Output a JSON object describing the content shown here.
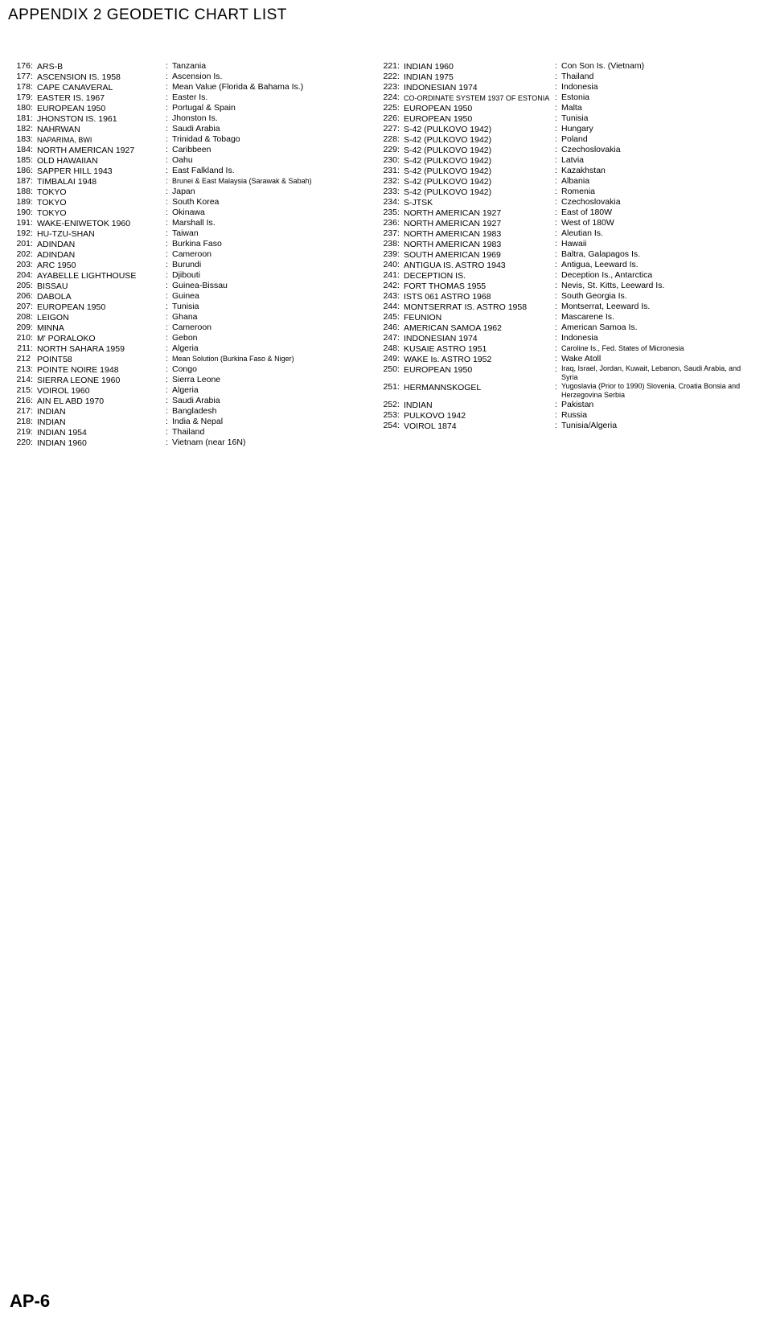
{
  "title": "APPENDIX 2 GEODETIC CHART LIST",
  "footer": "AP-6",
  "left": [
    {
      "num": "176",
      "name": "ARS-B",
      "desc": "Tanzania"
    },
    {
      "num": "177",
      "name": "ASCENSION IS. 1958",
      "desc": "Ascension Is."
    },
    {
      "num": "178",
      "name": "CAPE CANAVERAL",
      "desc": "Mean Value (Florida & Bahama Is.)"
    },
    {
      "num": "179",
      "name": "EASTER IS. 1967",
      "desc": "Easter Is."
    },
    {
      "num": "180",
      "name": "EUROPEAN 1950",
      "desc": "Portugal & Spain"
    },
    {
      "num": "181",
      "name": "JHONSTON IS. 1961",
      "desc": "Jhonston Is."
    },
    {
      "num": "182",
      "name": "NAHRWAN",
      "desc": "Saudi Arabia"
    },
    {
      "num": "183",
      "name": "NAPARIMA, BWI",
      "nameSm": true,
      "desc": "Trinidad & Tobago"
    },
    {
      "num": "184",
      "name": "NORTH AMERICAN 1927",
      "desc": "Caribbeen"
    },
    {
      "num": "185",
      "name": "OLD HAWAIIAN",
      "desc": "Oahu"
    },
    {
      "num": "186",
      "name": "SAPPER HILL 1943",
      "desc": "East Falkland Is."
    },
    {
      "num": "187",
      "name": "TIMBALAI 1948",
      "desc": "Brunei & East Malaysia (Sarawak & Sabah)",
      "descSm": true
    },
    {
      "num": "188",
      "name": "TOKYO",
      "desc": "Japan"
    },
    {
      "num": "189",
      "name": "TOKYO",
      "desc": "South Korea"
    },
    {
      "num": "190",
      "name": "TOKYO",
      "desc": "Okinawa"
    },
    {
      "num": "191",
      "name": "WAKE-ENIWETOK 1960",
      "desc": "Marshall Is."
    },
    {
      "num": "192",
      "name": "HU-TZU-SHAN",
      "desc": "Taiwan"
    },
    {
      "num": "201",
      "name": "ADINDAN",
      "desc": "Burkina Faso"
    },
    {
      "num": "202",
      "name": "ADINDAN",
      "desc": "Cameroon"
    },
    {
      "num": "203",
      "name": "ARC 1950",
      "desc": "Burundi"
    },
    {
      "num": "204",
      "name": "AYABELLE LIGHTHOUSE",
      "desc": "Djibouti"
    },
    {
      "num": "205",
      "name": "BISSAU",
      "desc": "Guinea-Bissau"
    },
    {
      "num": "206",
      "name": "DABOLA",
      "desc": "Guinea"
    },
    {
      "num": "207",
      "name": "EUROPEAN 1950",
      "desc": "Tunisia"
    },
    {
      "num": "208",
      "name": "LEIGON",
      "desc": "Ghana"
    },
    {
      "num": "209",
      "name": "MINNA",
      "desc": "Cameroon"
    },
    {
      "num": "210",
      "name": "M' PORALOKO",
      "desc": "Gebon"
    },
    {
      "num": "211",
      "name": "NORTH SAHARA 1959",
      "desc": "Algeria"
    },
    {
      "num": "212",
      "name": "POINT58",
      "noColon": true,
      "desc": "Mean Solution (Burkina Faso & Niger)",
      "descSm": true
    },
    {
      "num": "213",
      "name": "POINTE NOIRE 1948",
      "desc": "Congo"
    },
    {
      "num": "214",
      "name": "SIERRA LEONE 1960",
      "desc": "Sierra Leone"
    },
    {
      "num": "215",
      "name": "VOIROL 1960",
      "desc": "Algeria"
    },
    {
      "num": "216",
      "name": "AIN EL ABD 1970",
      "desc": "Saudi Arabia"
    },
    {
      "num": "217",
      "name": "INDIAN",
      "desc": "Bangladesh"
    },
    {
      "num": "218",
      "name": "INDIAN",
      "desc": "India & Nepal"
    },
    {
      "num": "219",
      "name": "INDIAN 1954",
      "desc": "Thailand"
    },
    {
      "num": "220",
      "name": "INDIAN 1960",
      "desc": "Vietnam (near 16N)"
    }
  ],
  "right": [
    {
      "num": "221",
      "name": "INDIAN 1960",
      "desc": "Con Son Is. (Vietnam)"
    },
    {
      "num": "222",
      "name": "INDIAN 1975",
      "desc": "Thailand"
    },
    {
      "num": "223",
      "name": "INDONESIAN 1974",
      "desc": "Indonesia"
    },
    {
      "num": "224",
      "name": "CO-ORDINATE SYSTEM 1937 OF ESTONIA",
      "nameSm": true,
      "desc": "Estonia"
    },
    {
      "num": "225",
      "name": "EUROPEAN 1950",
      "desc": "Malta"
    },
    {
      "num": "226",
      "name": "EUROPEAN 1950",
      "desc": "Tunisia"
    },
    {
      "num": "227",
      "name": "S-42 (PULKOVO 1942)",
      "desc": "Hungary"
    },
    {
      "num": "228",
      "name": "S-42 (PULKOVO 1942)",
      "desc": "Poland"
    },
    {
      "num": "229",
      "name": "S-42 (PULKOVO 1942)",
      "desc": "Czechoslovakia"
    },
    {
      "num": "230",
      "name": "S-42 (PULKOVO 1942)",
      "desc": "Latvia"
    },
    {
      "num": "231",
      "name": "S-42 (PULKOVO 1942)",
      "desc": "Kazakhstan"
    },
    {
      "num": "232",
      "name": "S-42 (PULKOVO 1942)",
      "desc": "Albania"
    },
    {
      "num": "233",
      "name": "S-42 (PULKOVO 1942)",
      "desc": "Romenia"
    },
    {
      "num": "234",
      "name": "S-JTSK",
      "desc": "Czechoslovakia"
    },
    {
      "num": "235",
      "name": "NORTH AMERICAN 1927",
      "desc": "East of 180W"
    },
    {
      "num": "236",
      "name": "NORTH AMERICAN 1927",
      "desc": "West of 180W"
    },
    {
      "num": "237",
      "name": "NORTH AMERICAN 1983",
      "desc": "Aleutian Is."
    },
    {
      "num": "238",
      "name": "NORTH AMERICAN 1983",
      "desc": "Hawaii"
    },
    {
      "num": "239",
      "name": "SOUTH AMERICAN 1969",
      "desc": "Baltra, Galapagos Is."
    },
    {
      "num": "240",
      "name": "ANTIGUA IS. ASTRO 1943",
      "desc": "Antigua, Leeward Is."
    },
    {
      "num": "241",
      "name": "DECEPTION IS.",
      "desc": "Deception Is., Antarctica"
    },
    {
      "num": "242",
      "name": "FORT THOMAS 1955",
      "desc": "Nevis, St. Kitts, Leeward Is."
    },
    {
      "num": "243",
      "name": "ISTS 061 ASTRO 1968",
      "desc": "South Georgia Is."
    },
    {
      "num": "244",
      "name": "MONTSERRAT IS. ASTRO 1958",
      "desc": "Montserrat, Leeward Is."
    },
    {
      "num": "245",
      "name": "FEUNION",
      "desc": "Mascarene Is."
    },
    {
      "num": "246",
      "name": "AMERICAN SAMOA 1962",
      "desc": "American Samoa Is."
    },
    {
      "num": "247",
      "name": "INDONESIAN 1974",
      "desc": "Indonesia"
    },
    {
      "num": "248",
      "name": "KUSAIE ASTRO 1951",
      "desc": "Caroline Is., Fed. States of Micronesia",
      "descSm": true
    },
    {
      "num": "249",
      "name": "WAKE Is. ASTRO 1952",
      "desc": "Wake Atoll"
    },
    {
      "num": "250",
      "name": "EUROPEAN 1950",
      "desc": "Iraq, Israel, Jordan, Kuwait, Lebanon, Saudi Arabia, and Syria",
      "descSm": true,
      "multi": true
    },
    {
      "num": "251",
      "name": "HERMANNSKOGEL",
      "desc": "Yugoslavia (Prior to 1990) Slovenia, Croatia Bonsia and Herzegovina Serbia",
      "multi": true,
      "descSm": true
    },
    {
      "num": "252",
      "name": "INDIAN",
      "desc": "Pakistan"
    },
    {
      "num": "253",
      "name": "PULKOVO 1942",
      "desc": "Russia"
    },
    {
      "num": "254",
      "name": "VOIROL 1874",
      "desc": "Tunisia/Algeria"
    }
  ]
}
